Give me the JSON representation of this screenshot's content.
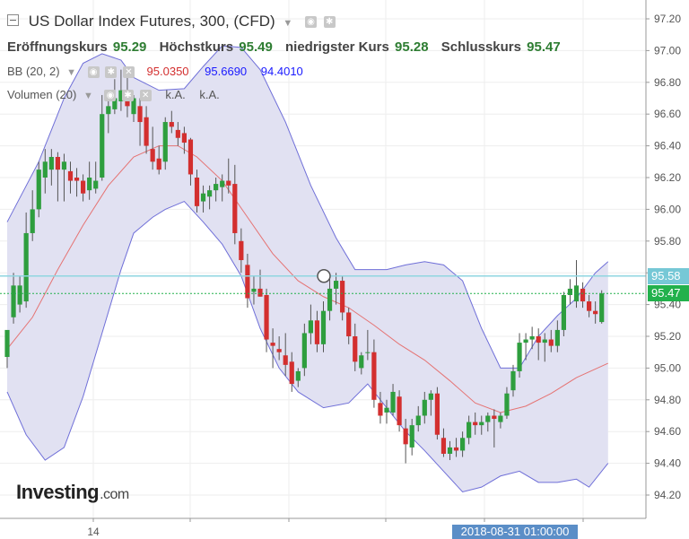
{
  "header": {
    "title": "US Dollar Index Futures, 300, (CFD)",
    "ohlc": [
      {
        "label": "Eröffnungskurs",
        "value": "95.29"
      },
      {
        "label": "Höchstkurs",
        "value": "95.49"
      },
      {
        "label": "niedrigster Kurs",
        "value": "95.28"
      },
      {
        "label": "Schlusskurs",
        "value": "95.47"
      }
    ],
    "bb": {
      "label": "BB (20, 2)",
      "middle": "95.0350",
      "upper": "95.6690",
      "lower": "94.4010"
    },
    "volume": {
      "label": "Volumen (20)",
      "v1": "k.A.",
      "v2": "k.A."
    }
  },
  "crosshair": {
    "price_label": "95.58",
    "time_label": "2018-08-31 01:00:00"
  },
  "last_price_label": "95.47",
  "logo": {
    "text": "Investing",
    "suffix": ".com"
  },
  "colors": {
    "up": "#2e9e3e",
    "down": "#d32f2f",
    "band_fill": "#e1e1f2",
    "band_line": "#6f6fd8",
    "middle_line": "#e57373",
    "crosshair_line": "#8fd6e0",
    "last_price": "#22b14c",
    "time_badge": "#5b8ec7"
  },
  "chart_data": {
    "type": "candlestick",
    "title": "US Dollar Index Futures, 300, (CFD)",
    "ylim": [
      94.1,
      97.3
    ],
    "yticks": [
      "97.20",
      "97.00",
      "96.80",
      "96.60",
      "96.40",
      "96.20",
      "96.00",
      "95.80",
      "95.60",
      "95.40",
      "95.20",
      "95.00",
      "94.80",
      "94.60",
      "94.40",
      "94.20"
    ],
    "xticks": [
      {
        "label": "14",
        "index": 14
      }
    ],
    "candles": [
      {
        "o": 95.07,
        "h": 95.22,
        "l": 95.0,
        "c": 95.24
      },
      {
        "o": 95.32,
        "h": 95.6,
        "l": 95.28,
        "c": 95.52
      },
      {
        "o": 95.4,
        "h": 95.58,
        "l": 95.35,
        "c": 95.52
      },
      {
        "o": 95.42,
        "h": 95.98,
        "l": 95.38,
        "c": 95.85
      },
      {
        "o": 95.85,
        "h": 96.12,
        "l": 95.8,
        "c": 96.0
      },
      {
        "o": 96.0,
        "h": 96.3,
        "l": 95.95,
        "c": 96.25
      },
      {
        "o": 96.2,
        "h": 96.38,
        "l": 96.1,
        "c": 96.3
      },
      {
        "o": 96.25,
        "h": 96.38,
        "l": 96.15,
        "c": 96.33
      },
      {
        "o": 96.33,
        "h": 96.36,
        "l": 96.05,
        "c": 96.25
      },
      {
        "o": 96.25,
        "h": 96.35,
        "l": 96.05,
        "c": 96.3
      },
      {
        "o": 96.24,
        "h": 96.3,
        "l": 96.1,
        "c": 96.18
      },
      {
        "o": 96.2,
        "h": 96.26,
        "l": 96.08,
        "c": 96.18
      },
      {
        "o": 96.18,
        "h": 96.22,
        "l": 96.05,
        "c": 96.1
      },
      {
        "o": 96.12,
        "h": 96.3,
        "l": 96.06,
        "c": 96.2
      },
      {
        "o": 96.13,
        "h": 96.3,
        "l": 96.1,
        "c": 96.18
      },
      {
        "o": 96.2,
        "h": 96.72,
        "l": 96.18,
        "c": 96.6
      },
      {
        "o": 96.6,
        "h": 96.7,
        "l": 96.48,
        "c": 96.65
      },
      {
        "o": 96.63,
        "h": 96.82,
        "l": 96.6,
        "c": 96.7
      },
      {
        "o": 96.68,
        "h": 96.88,
        "l": 96.62,
        "c": 96.75
      },
      {
        "o": 96.72,
        "h": 96.88,
        "l": 96.58,
        "c": 96.65
      },
      {
        "o": 96.6,
        "h": 96.72,
        "l": 96.55,
        "c": 96.7
      },
      {
        "o": 96.65,
        "h": 96.7,
        "l": 96.4,
        "c": 96.55
      },
      {
        "o": 96.58,
        "h": 96.65,
        "l": 96.35,
        "c": 96.4
      },
      {
        "o": 96.38,
        "h": 96.52,
        "l": 96.25,
        "c": 96.3
      },
      {
        "o": 96.32,
        "h": 96.4,
        "l": 96.22,
        "c": 96.25
      },
      {
        "o": 96.3,
        "h": 96.58,
        "l": 96.25,
        "c": 96.55
      },
      {
        "o": 96.55,
        "h": 96.62,
        "l": 96.48,
        "c": 96.52
      },
      {
        "o": 96.5,
        "h": 96.55,
        "l": 96.4,
        "c": 96.45
      },
      {
        "o": 96.48,
        "h": 96.52,
        "l": 96.35,
        "c": 96.42
      },
      {
        "o": 96.44,
        "h": 96.45,
        "l": 96.15,
        "c": 96.22
      },
      {
        "o": 96.2,
        "h": 96.25,
        "l": 95.98,
        "c": 96.02
      },
      {
        "o": 96.05,
        "h": 96.15,
        "l": 95.98,
        "c": 96.1
      },
      {
        "o": 96.08,
        "h": 96.15,
        "l": 96.0,
        "c": 96.12
      },
      {
        "o": 96.12,
        "h": 96.2,
        "l": 96.05,
        "c": 96.16
      },
      {
        "o": 96.14,
        "h": 96.22,
        "l": 96.05,
        "c": 96.18
      },
      {
        "o": 96.18,
        "h": 96.32,
        "l": 96.1,
        "c": 96.15
      },
      {
        "o": 96.16,
        "h": 96.28,
        "l": 95.78,
        "c": 95.85
      },
      {
        "o": 95.8,
        "h": 95.88,
        "l": 95.6,
        "c": 95.68
      },
      {
        "o": 95.65,
        "h": 95.72,
        "l": 95.38,
        "c": 95.44
      },
      {
        "o": 95.48,
        "h": 95.58,
        "l": 95.4,
        "c": 95.5
      },
      {
        "o": 95.5,
        "h": 95.62,
        "l": 95.45,
        "c": 95.45
      },
      {
        "o": 95.46,
        "h": 95.5,
        "l": 95.1,
        "c": 95.18
      },
      {
        "o": 95.16,
        "h": 95.25,
        "l": 95.0,
        "c": 95.14
      },
      {
        "o": 95.12,
        "h": 95.2,
        "l": 95.05,
        "c": 95.1
      },
      {
        "o": 95.08,
        "h": 95.22,
        "l": 94.95,
        "c": 95.02
      },
      {
        "o": 95.04,
        "h": 95.1,
        "l": 94.85,
        "c": 94.9
      },
      {
        "o": 94.92,
        "h": 95.0,
        "l": 94.88,
        "c": 94.98
      },
      {
        "o": 95.0,
        "h": 95.28,
        "l": 94.95,
        "c": 95.22
      },
      {
        "o": 95.22,
        "h": 95.4,
        "l": 95.15,
        "c": 95.3
      },
      {
        "o": 95.3,
        "h": 95.36,
        "l": 95.1,
        "c": 95.15
      },
      {
        "o": 95.15,
        "h": 95.42,
        "l": 95.1,
        "c": 95.36
      },
      {
        "o": 95.36,
        "h": 95.58,
        "l": 95.3,
        "c": 95.5
      },
      {
        "o": 95.5,
        "h": 95.6,
        "l": 95.4,
        "c": 95.55
      },
      {
        "o": 95.55,
        "h": 95.58,
        "l": 95.3,
        "c": 95.35
      },
      {
        "o": 95.35,
        "h": 95.38,
        "l": 95.15,
        "c": 95.2
      },
      {
        "o": 95.2,
        "h": 95.28,
        "l": 94.98,
        "c": 95.04
      },
      {
        "o": 95.0,
        "h": 95.1,
        "l": 94.96,
        "c": 95.08
      },
      {
        "o": 95.1,
        "h": 95.24,
        "l": 95.05,
        "c": 95.1
      },
      {
        "o": 95.1,
        "h": 95.18,
        "l": 94.75,
        "c": 94.8
      },
      {
        "o": 94.78,
        "h": 94.85,
        "l": 94.65,
        "c": 94.7
      },
      {
        "o": 94.72,
        "h": 94.8,
        "l": 94.65,
        "c": 94.75
      },
      {
        "o": 94.72,
        "h": 94.9,
        "l": 94.7,
        "c": 94.85
      },
      {
        "o": 94.82,
        "h": 94.86,
        "l": 94.6,
        "c": 94.64
      },
      {
        "o": 94.62,
        "h": 94.68,
        "l": 94.4,
        "c": 94.52
      },
      {
        "o": 94.5,
        "h": 94.68,
        "l": 94.45,
        "c": 94.64
      },
      {
        "o": 94.64,
        "h": 94.76,
        "l": 94.6,
        "c": 94.7
      },
      {
        "o": 94.7,
        "h": 94.85,
        "l": 94.65,
        "c": 94.8
      },
      {
        "o": 94.8,
        "h": 94.86,
        "l": 94.7,
        "c": 94.84
      },
      {
        "o": 94.84,
        "h": 94.88,
        "l": 94.55,
        "c": 94.58
      },
      {
        "o": 94.56,
        "h": 94.62,
        "l": 94.44,
        "c": 94.46
      },
      {
        "o": 94.46,
        "h": 94.54,
        "l": 94.42,
        "c": 94.5
      },
      {
        "o": 94.5,
        "h": 94.56,
        "l": 94.44,
        "c": 94.48
      },
      {
        "o": 94.48,
        "h": 94.6,
        "l": 94.44,
        "c": 94.56
      },
      {
        "o": 94.56,
        "h": 94.7,
        "l": 94.52,
        "c": 94.66
      },
      {
        "o": 94.66,
        "h": 94.72,
        "l": 94.58,
        "c": 94.64
      },
      {
        "o": 94.64,
        "h": 94.7,
        "l": 94.58,
        "c": 94.66
      },
      {
        "o": 94.66,
        "h": 94.72,
        "l": 94.6,
        "c": 94.7
      },
      {
        "o": 94.7,
        "h": 94.74,
        "l": 94.5,
        "c": 94.68
      },
      {
        "o": 94.66,
        "h": 94.72,
        "l": 94.62,
        "c": 94.7
      },
      {
        "o": 94.7,
        "h": 94.88,
        "l": 94.68,
        "c": 94.84
      },
      {
        "o": 94.86,
        "h": 95.02,
        "l": 94.82,
        "c": 94.98
      },
      {
        "o": 94.98,
        "h": 95.22,
        "l": 94.94,
        "c": 95.16
      },
      {
        "o": 95.16,
        "h": 95.22,
        "l": 95.05,
        "c": 95.18
      },
      {
        "o": 95.18,
        "h": 95.26,
        "l": 95.12,
        "c": 95.2
      },
      {
        "o": 95.2,
        "h": 95.25,
        "l": 95.05,
        "c": 95.16
      },
      {
        "o": 95.16,
        "h": 95.22,
        "l": 95.04,
        "c": 95.18
      },
      {
        "o": 95.18,
        "h": 95.24,
        "l": 95.1,
        "c": 95.14
      },
      {
        "o": 95.14,
        "h": 95.3,
        "l": 95.1,
        "c": 95.24
      },
      {
        "o": 95.24,
        "h": 95.48,
        "l": 95.2,
        "c": 95.46
      },
      {
        "o": 95.46,
        "h": 95.56,
        "l": 95.4,
        "c": 95.5
      },
      {
        "o": 95.42,
        "h": 95.68,
        "l": 95.38,
        "c": 95.52
      },
      {
        "o": 95.5,
        "h": 95.54,
        "l": 95.38,
        "c": 95.42
      },
      {
        "o": 95.42,
        "h": 95.46,
        "l": 95.32,
        "c": 95.36
      },
      {
        "o": 95.36,
        "h": 95.42,
        "l": 95.28,
        "c": 95.34
      },
      {
        "o": 95.29,
        "h": 95.49,
        "l": 95.28,
        "c": 95.47
      }
    ],
    "bollinger": {
      "period": 20,
      "stddev": 2,
      "upper": [
        [
          0,
          95.92
        ],
        [
          5,
          96.3
        ],
        [
          9,
          96.7
        ],
        [
          12,
          96.92
        ],
        [
          15,
          96.98
        ],
        [
          18,
          96.94
        ],
        [
          20,
          96.83
        ],
        [
          24,
          96.75
        ],
        [
          28,
          96.76
        ],
        [
          31,
          96.9
        ],
        [
          34,
          97.03
        ],
        [
          37,
          97.02
        ],
        [
          40,
          96.88
        ],
        [
          44,
          96.55
        ],
        [
          48,
          96.15
        ],
        [
          52,
          95.82
        ],
        [
          55,
          95.62
        ],
        [
          57,
          95.62
        ],
        [
          60,
          95.62
        ],
        [
          63,
          95.65
        ],
        [
          66,
          95.67
        ],
        [
          69,
          95.65
        ],
        [
          72,
          95.55
        ],
        [
          75,
          95.25
        ],
        [
          78,
          95.0
        ],
        [
          81,
          95.0
        ],
        [
          84,
          95.2
        ],
        [
          87,
          95.33
        ],
        [
          90,
          95.44
        ],
        [
          93,
          95.6
        ],
        [
          95,
          95.67
        ]
      ],
      "middle": [
        [
          0,
          95.12
        ],
        [
          4,
          95.32
        ],
        [
          8,
          95.62
        ],
        [
          12,
          95.9
        ],
        [
          16,
          96.15
        ],
        [
          20,
          96.33
        ],
        [
          24,
          96.4
        ],
        [
          27,
          96.4
        ],
        [
          30,
          96.33
        ],
        [
          34,
          96.18
        ],
        [
          38,
          95.95
        ],
        [
          42,
          95.72
        ],
        [
          46,
          95.55
        ],
        [
          50,
          95.45
        ],
        [
          54,
          95.38
        ],
        [
          58,
          95.27
        ],
        [
          62,
          95.15
        ],
        [
          66,
          95.05
        ],
        [
          70,
          94.92
        ],
        [
          74,
          94.78
        ],
        [
          78,
          94.72
        ],
        [
          82,
          94.76
        ],
        [
          86,
          94.84
        ],
        [
          90,
          94.94
        ],
        [
          95,
          95.03
        ]
      ],
      "lower": [
        [
          0,
          94.85
        ],
        [
          3,
          94.58
        ],
        [
          6,
          94.42
        ],
        [
          9,
          94.5
        ],
        [
          12,
          94.82
        ],
        [
          15,
          95.22
        ],
        [
          18,
          95.62
        ],
        [
          20,
          95.85
        ],
        [
          23,
          95.95
        ],
        [
          25,
          96.0
        ],
        [
          28,
          96.05
        ],
        [
          31,
          95.92
        ],
        [
          34,
          95.78
        ],
        [
          37,
          95.58
        ],
        [
          40,
          95.25
        ],
        [
          43,
          95.0
        ],
        [
          46,
          94.85
        ],
        [
          50,
          94.75
        ],
        [
          54,
          94.78
        ],
        [
          57,
          94.9
        ],
        [
          60,
          94.75
        ],
        [
          63,
          94.6
        ],
        [
          66,
          94.48
        ],
        [
          69,
          94.35
        ],
        [
          72,
          94.22
        ],
        [
          75,
          94.25
        ],
        [
          78,
          94.32
        ],
        [
          81,
          94.35
        ],
        [
          84,
          94.28
        ],
        [
          87,
          94.28
        ],
        [
          90,
          94.3
        ],
        [
          92,
          94.25
        ],
        [
          95,
          94.4
        ]
      ]
    }
  }
}
